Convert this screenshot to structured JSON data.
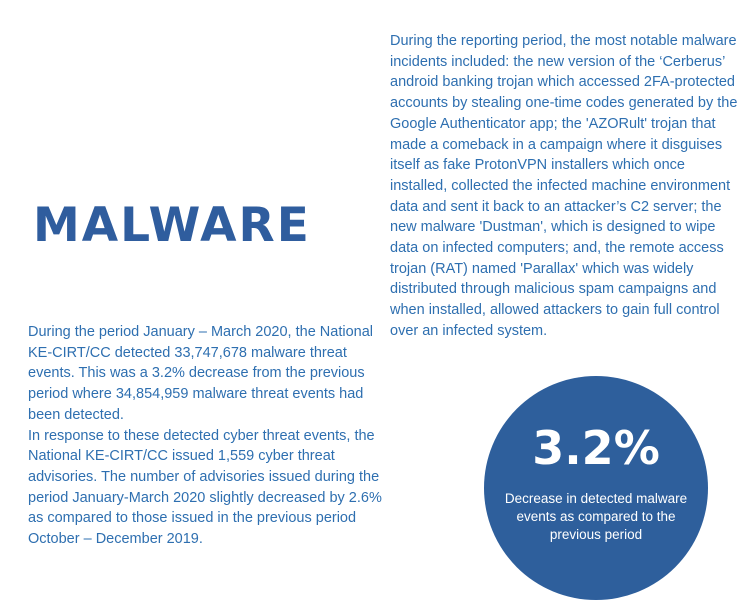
{
  "section": {
    "title": "MALWARE"
  },
  "left_column": {
    "paragraph_1": "During the period January – March 2020, the National KE-CIRT/CC detected 33,747,678 malware threat events. This was a 3.2% decrease from the previous period where 34,854,959 malware threat events had been detected.",
    "paragraph_2": "In response to these detected cyber threat events, the National KE-CIRT/CC issued 1,559 cyber threat advisories. The number of advisories issued during the period January-March 2020 slightly decreased by 2.6% as compared to those issued in the previous period October – December 2019."
  },
  "right_column": {
    "paragraph": "During the reporting period, the most notable malware incidents included: the new version of the ‘Cerberus’ android banking trojan which accessed 2FA-protected accounts by stealing one-time codes generated by the Google Authenticator app; the 'AZORult' trojan that made a comeback in a campaign where it disguises itself as fake ProtonVPN installers which once installed, collected the infected machine environment data and sent it back to an attacker’s C2 server; the new malware 'Dustman', which is designed to wipe data on infected computers; and, the remote access trojan (RAT) named 'Parallax' which was widely distributed through malicious spam campaigns and when installed, allowed attackers to gain full control over an infected system."
  },
  "stat": {
    "value": "3.2%",
    "caption": "Decrease in detected malware events as compared to the previous period"
  },
  "colors": {
    "heading": "#2f5d9e",
    "body_text": "#2e6fb0",
    "circle": "#2e5f9c",
    "circle_text": "#ffffff"
  }
}
